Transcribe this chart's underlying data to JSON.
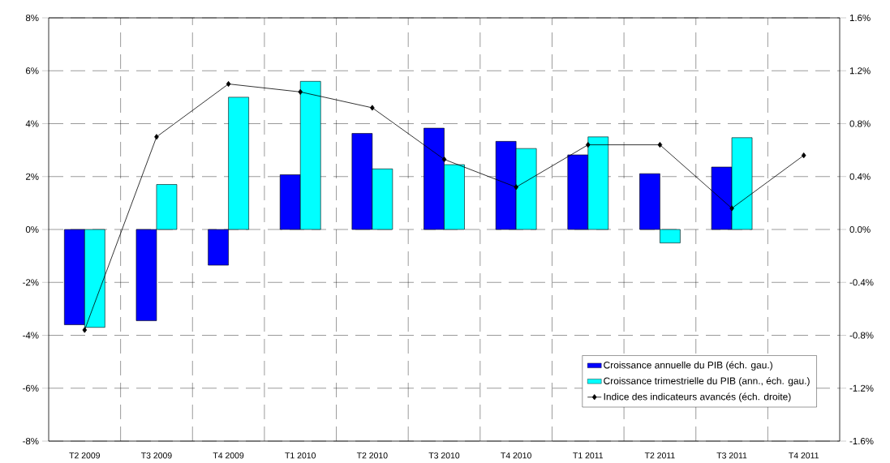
{
  "chart_data": {
    "type": "bar",
    "categories": [
      "T2 2009",
      "T3 2009",
      "T4 2009",
      "T1 2010",
      "T2 2010",
      "T3 2010",
      "T4 2010",
      "T1 2011",
      "T2 2011",
      "T3 2011",
      "T4 2011"
    ],
    "series": [
      {
        "name": "Croissance annuelle du PIB (éch. gau.)",
        "color": "#0000ff",
        "values": [
          -3.6,
          -3.45,
          -1.35,
          2.07,
          3.63,
          3.83,
          3.33,
          2.82,
          2.11,
          2.36,
          null
        ]
      },
      {
        "name": "Croissance trimestrielle du PIB (ann., éch. gau.)",
        "color": "#00ffff",
        "values": [
          -3.7,
          1.7,
          5.0,
          5.6,
          2.29,
          2.45,
          3.06,
          3.5,
          -0.51,
          3.47,
          null
        ]
      },
      {
        "name": "Indice des indicateurs avancés (éch. droite)",
        "type": "line",
        "axis": "y2",
        "marker": "diamond",
        "color": "#000000",
        "values": [
          -0.76,
          0.7,
          1.1,
          1.04,
          0.92,
          0.53,
          0.32,
          0.64,
          0.64,
          0.16,
          0.56
        ]
      }
    ],
    "ylim": [
      -8,
      8
    ],
    "yticks": [
      {
        "value": -8,
        "label": "-8%"
      },
      {
        "value": -6,
        "label": "-6%"
      },
      {
        "value": -4,
        "label": "-4%"
      },
      {
        "value": -2,
        "label": "-2%"
      },
      {
        "value": 0,
        "label": "0%"
      },
      {
        "value": 2,
        "label": "2%"
      },
      {
        "value": 4,
        "label": "4%"
      },
      {
        "value": 6,
        "label": "6%"
      },
      {
        "value": 8,
        "label": "8%"
      }
    ],
    "y2lim": [
      -1.6,
      1.6
    ],
    "y2ticks": [
      {
        "value": -1.6,
        "label": "-1.6%"
      },
      {
        "value": -1.2,
        "label": "-1.2%"
      },
      {
        "value": -0.8,
        "label": "-0.8%"
      },
      {
        "value": -0.4,
        "label": "-0.4%"
      },
      {
        "value": 0,
        "label": "0.0%"
      },
      {
        "value": 0.4,
        "label": "0.4%"
      },
      {
        "value": 0.8,
        "label": "0.8%"
      },
      {
        "value": 1.2,
        "label": "1.2%"
      },
      {
        "value": 1.6,
        "label": "1.6%"
      }
    ],
    "grid": true,
    "legend": "bottom right"
  }
}
